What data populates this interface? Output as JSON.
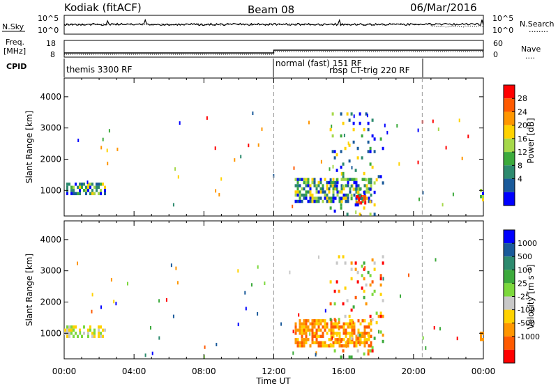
{
  "header": {
    "station": "Kodiak (fitACF)",
    "beam": "Beam 08",
    "date": "06/Mar/2016"
  },
  "params_panel": {
    "nsky_label": "N.Sky",
    "nsearch_label": "N.Search",
    "nsearch_dots": "........",
    "noise_tick_top": "10^5",
    "noise_tick_bottom": "10^0",
    "noise_tick_top_right": "10^5",
    "noise_tick_bottom_right": "10^0",
    "freq_label_line1": "Freq.",
    "freq_label_line2": "[MHz]",
    "freq_ticks": [
      "18",
      "8"
    ],
    "nave_label": "Nave",
    "nave_dots": "....",
    "nave_ticks": [
      "60",
      "0"
    ],
    "cpid_label": "CPID"
  },
  "cpid_segments": [
    {
      "label": "themis 3300 RF",
      "start_hour": 0
    },
    {
      "label": "normal (fast) 151 RF",
      "start_hour": 12
    },
    {
      "label": "rbsp CT-trig 220 RF",
      "start_hour": 20.5
    }
  ],
  "cpid_extra_label": "rbsp CT-trig 220 RF",
  "power_colorbar": {
    "label": "Power [dB]",
    "ticks": [
      "28",
      "24",
      "20",
      "16",
      "12",
      "8",
      "4"
    ],
    "colors": [
      "#ff0000",
      "#ff5a00",
      "#ff9600",
      "#ffd200",
      "#a6d84a",
      "#3caa3c",
      "#2d8a6e",
      "#1a5a9a",
      "#0000ff"
    ]
  },
  "velocity_colorbar": {
    "label": "Velocity [m s⁻¹]",
    "ticks": [
      "1000",
      "500",
      "100",
      "25",
      "-25",
      "-100",
      "-500",
      "-1000"
    ],
    "colors": [
      "#0000ff",
      "#1a5a9a",
      "#2d8a6e",
      "#3caa3c",
      "#7cd83c",
      "#c8c8c8",
      "#ffd200",
      "#ff9600",
      "#ff5a00",
      "#ff0000"
    ]
  },
  "chart_data": [
    {
      "type": "heatmap",
      "name": "power",
      "ylabel": "Slant Range [km]",
      "xlabel": "Time UT",
      "xlim_hours": [
        0,
        24
      ],
      "ylim_km": [
        180,
        4600
      ],
      "yticks": [
        "1000",
        "2000",
        "3000",
        "4000"
      ],
      "xticks": [
        "00:00",
        "04:00",
        "08:00",
        "12:00",
        "16:00",
        "20:00",
        "00:00"
      ],
      "dashed_lines_hours": [
        12,
        20.5
      ],
      "regions": [
        {
          "t0": 0.0,
          "t1": 2.3,
          "r0": 850,
          "r1": 1250,
          "level": "mid"
        },
        {
          "t0": 13.2,
          "t1": 17.6,
          "r0": 600,
          "r1": 1400,
          "level": "mid"
        },
        {
          "t0": 16.7,
          "t1": 17.2,
          "r0": 600,
          "r1": 850,
          "level": "high"
        },
        {
          "t0": 15.2,
          "t1": 18.3,
          "r0": 250,
          "r1": 3500,
          "level": "sparse"
        },
        {
          "t0": 23.8,
          "t1": 24.0,
          "r0": 700,
          "r1": 1050,
          "level": "mid"
        }
      ]
    },
    {
      "type": "heatmap",
      "name": "velocity",
      "ylabel": "Slant Range [km]",
      "xlabel": "Time UT",
      "xlim_hours": [
        0,
        24
      ],
      "ylim_km": [
        180,
        4600
      ],
      "yticks": [
        "1000",
        "2000",
        "3000",
        "4000"
      ],
      "xticks": [
        "00:00",
        "04:00",
        "08:00",
        "12:00",
        "16:00",
        "20:00",
        "00:00"
      ],
      "dashed_lines_hours": [
        12,
        20.5
      ],
      "regions": [
        {
          "t0": 0.0,
          "t1": 2.3,
          "r0": 850,
          "r1": 1250,
          "level": "low"
        },
        {
          "t0": 13.2,
          "t1": 17.6,
          "r0": 600,
          "r1": 1450,
          "level": "negative"
        },
        {
          "t0": 15.2,
          "t1": 18.3,
          "r0": 250,
          "r1": 3500,
          "level": "sparse"
        },
        {
          "t0": 23.8,
          "t1": 24.0,
          "r0": 700,
          "r1": 1050,
          "level": "negative"
        }
      ]
    }
  ]
}
